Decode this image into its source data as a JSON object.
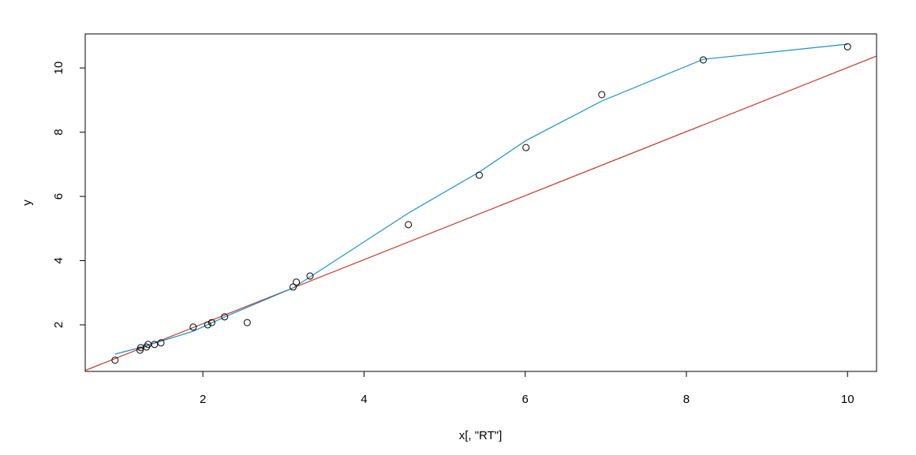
{
  "chart_data": {
    "type": "scatter",
    "xlabel": "x[, \"RT\"]",
    "ylabel": "y",
    "xlim": [
      0.54,
      10.36
    ],
    "ylim": [
      0.55,
      11.06
    ],
    "xticks": [
      2,
      4,
      6,
      8,
      10
    ],
    "yticks": [
      2,
      4,
      6,
      8,
      10
    ],
    "point_color": "#000000",
    "x": [
      0.91,
      1.22,
      1.23,
      1.3,
      1.32,
      1.4,
      1.48,
      1.88,
      2.06,
      2.11,
      2.27,
      2.55,
      3.12,
      3.16,
      3.33,
      4.55,
      5.43,
      6.01,
      6.95,
      8.21,
      10.0
    ],
    "y": [
      0.9,
      1.21,
      1.29,
      1.31,
      1.39,
      1.39,
      1.44,
      1.93,
      2.0,
      2.07,
      2.25,
      2.07,
      3.18,
      3.33,
      3.52,
      5.12,
      6.66,
      7.52,
      9.17,
      10.25,
      10.66
    ],
    "lines": [
      {
        "color": "#c0392b",
        "x": [
          0.54,
          10.36
        ],
        "values": [
          0.58,
          10.37
        ]
      },
      {
        "color": "#1f8fbf",
        "x": [
          0.91,
          1.22,
          1.88,
          2.31,
          3.12,
          4.55,
          5.43,
          6.01,
          6.95,
          8.21,
          10.0
        ],
        "values": [
          1.09,
          1.29,
          1.8,
          2.29,
          3.15,
          5.48,
          6.76,
          7.74,
          8.97,
          10.27,
          10.74
        ]
      }
    ]
  }
}
